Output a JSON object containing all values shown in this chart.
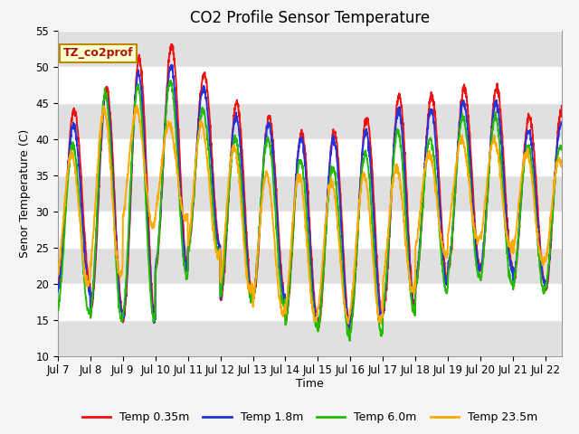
{
  "title": "CO2 Profile Sensor Temperature",
  "ylabel": "Senor Temperature (C)",
  "xlabel": "Time",
  "ylim": [
    10,
    55
  ],
  "yticks": [
    10,
    15,
    20,
    25,
    30,
    35,
    40,
    45,
    50,
    55
  ],
  "xtick_labels": [
    "Jul 7",
    "Jul 8",
    "Jul 9",
    "Jul 10",
    "Jul 11",
    "Jul 12",
    "Jul 13",
    "Jul 14",
    "Jul 15",
    "Jul 16",
    "Jul 17",
    "Jul 18",
    "Jul 19",
    "Jul 20",
    "Jul 21",
    "Jul 22"
  ],
  "colors": {
    "red": "#ee1111",
    "blue": "#2233dd",
    "green": "#22bb00",
    "orange": "#ffaa00"
  },
  "legend_labels": [
    "Temp 0.35m",
    "Temp 1.8m",
    "Temp 6.0m",
    "Temp 23.5m"
  ],
  "annotation_text": "TZ_co2prof",
  "annotation_color": "#aa1111",
  "annotation_bg": "#ffffcc",
  "annotation_border": "#bb8800",
  "fig_bg": "#f5f5f5",
  "plot_bg": "#ffffff",
  "band_color": "#e0e0e0",
  "title_fontsize": 12,
  "axis_label_fontsize": 9,
  "tick_fontsize": 8.5
}
